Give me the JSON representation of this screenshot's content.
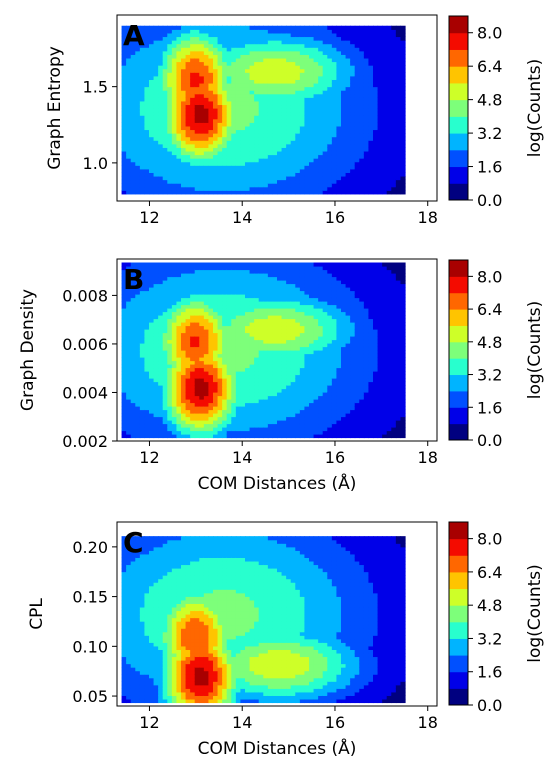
{
  "chart_data": [
    {
      "type": "contour",
      "panel_label": "A",
      "xlabel": "",
      "ylabel": "Graph Entropy",
      "xlim": [
        11.3,
        18.2
      ],
      "ylim": [
        0.75,
        1.97
      ],
      "xticks": [
        12,
        14,
        16,
        18
      ],
      "yticks": [
        1.0,
        1.5
      ],
      "ytick_labels": [
        "1.0",
        "1.5"
      ],
      "z_label": "log(Counts)",
      "z_levels": [
        0.0,
        0.8,
        1.6,
        2.4,
        3.2,
        4.0,
        4.8,
        5.6,
        6.4,
        7.2,
        8.0,
        8.8
      ],
      "colorbar_ticks": [
        "0.0",
        "1.6",
        "3.2",
        "4.8",
        "6.4",
        "8.0"
      ],
      "peaks": [
        {
          "x": 13.1,
          "y": 1.32,
          "z": 8.3
        },
        {
          "x": 13.0,
          "y": 1.55,
          "z": 7.4
        },
        {
          "x": 14.7,
          "y": 1.6,
          "z": 5.3
        }
      ],
      "support": {
        "x_range": [
          11.4,
          17.5
        ],
        "y_range": [
          0.8,
          1.9
        ]
      }
    },
    {
      "type": "contour",
      "panel_label": "B",
      "xlabel": "COM Distances (Å)",
      "ylabel": "Graph Density",
      "xlim": [
        11.3,
        18.2
      ],
      "ylim": [
        0.002,
        0.0095
      ],
      "xticks": [
        12,
        14,
        16,
        18
      ],
      "yticks": [
        0.002,
        0.004,
        0.006,
        0.008
      ],
      "ytick_labels": [
        "0.002",
        "0.004",
        "0.006",
        "0.008"
      ],
      "z_label": "log(Counts)",
      "z_levels": [
        0.0,
        0.8,
        1.6,
        2.4,
        3.2,
        4.0,
        4.8,
        5.6,
        6.4,
        7.2,
        8.0,
        8.8
      ],
      "colorbar_ticks": [
        "0.0",
        "1.6",
        "3.2",
        "4.8",
        "6.4",
        "8.0"
      ],
      "peaks": [
        {
          "x": 13.1,
          "y": 0.0042,
          "z": 8.3
        },
        {
          "x": 13.0,
          "y": 0.0061,
          "z": 7.3
        },
        {
          "x": 14.7,
          "y": 0.0066,
          "z": 5.3
        }
      ],
      "support": {
        "x_range": [
          11.4,
          17.5
        ],
        "y_range": [
          0.0022,
          0.0093
        ]
      }
    },
    {
      "type": "contour",
      "panel_label": "C",
      "xlabel": "COM Distances (Å)",
      "ylabel": "CPL",
      "xlim": [
        11.3,
        18.2
      ],
      "ylim": [
        0.04,
        0.225
      ],
      "xticks": [
        12,
        14,
        16,
        18
      ],
      "yticks": [
        0.05,
        0.1,
        0.15,
        0.2
      ],
      "ytick_labels": [
        "0.05",
        "0.10",
        "0.15",
        "0.20"
      ],
      "z_label": "log(Counts)",
      "z_levels": [
        0.0,
        0.8,
        1.6,
        2.4,
        3.2,
        4.0,
        4.8,
        5.6,
        6.4,
        7.2,
        8.0,
        8.8
      ],
      "colorbar_ticks": [
        "0.0",
        "1.6",
        "3.2",
        "4.8",
        "6.4",
        "8.0"
      ],
      "peaks": [
        {
          "x": 13.1,
          "y": 0.07,
          "z": 8.3
        },
        {
          "x": 13.0,
          "y": 0.11,
          "z": 7.2
        },
        {
          "x": 14.8,
          "y": 0.082,
          "z": 5.4
        }
      ],
      "support": {
        "x_range": [
          11.4,
          17.5
        ],
        "y_range": [
          0.045,
          0.21
        ]
      }
    }
  ]
}
